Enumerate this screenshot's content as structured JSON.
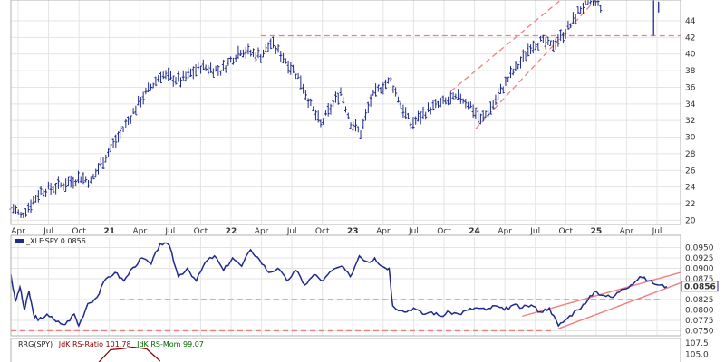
{
  "chart_data": [
    {
      "type": "ohlc",
      "x_ticks": [
        "Apr",
        "Jul",
        "Oct",
        "21",
        "Apr",
        "Jul",
        "Oct",
        "22",
        "Apr",
        "Jul",
        "Oct",
        "23",
        "Apr",
        "Jul",
        "Oct",
        "24",
        "Apr",
        "Jul",
        "Oct",
        "25",
        "Apr",
        "Jul"
      ],
      "ylim": [
        19.5,
        46.5
      ],
      "y_ticks": [
        20,
        22,
        24,
        26,
        28,
        30,
        32,
        34,
        36,
        38,
        40,
        42,
        44
      ],
      "grid": true,
      "price_path": [
        [
          0,
          21.8
        ],
        [
          1,
          20.5
        ],
        [
          3,
          23.5
        ],
        [
          5,
          24.2
        ],
        [
          7,
          25.2
        ],
        [
          8,
          24.6
        ],
        [
          9,
          26.8
        ],
        [
          11,
          30.5
        ],
        [
          13,
          34.5
        ],
        [
          15,
          37.5
        ],
        [
          17,
          36.8
        ],
        [
          19,
          38.5
        ],
        [
          21,
          38.0
        ],
        [
          23,
          40.5
        ],
        [
          25,
          39.8
        ],
        [
          26,
          41.3
        ],
        [
          27,
          40.0
        ],
        [
          28,
          38.5
        ],
        [
          29,
          36.8
        ],
        [
          30,
          33.8
        ],
        [
          31,
          31.5
        ],
        [
          32,
          33.5
        ],
        [
          33,
          35.5
        ],
        [
          34,
          31.8
        ],
        [
          35,
          30.5
        ],
        [
          36,
          34.5
        ],
        [
          37,
          36.0
        ],
        [
          38,
          36.8
        ],
        [
          39,
          34.0
        ],
        [
          40,
          31.5
        ],
        [
          41,
          32.5
        ],
        [
          42,
          33.5
        ],
        [
          44,
          34.5
        ],
        [
          45,
          34.8
        ],
        [
          46,
          33.8
        ],
        [
          47,
          32.0
        ],
        [
          48,
          33.5
        ],
        [
          49,
          35.5
        ],
        [
          50,
          37.5
        ],
        [
          51,
          39.0
        ],
        [
          52,
          41.0
        ],
        [
          53,
          41.5
        ],
        [
          54,
          41.0
        ],
        [
          55,
          42.0
        ],
        [
          56,
          43.5
        ],
        [
          57,
          45.5
        ],
        [
          58,
          46.3
        ],
        [
          59,
          45.8
        ]
      ],
      "gap_after_index": 59,
      "last_bars": [
        {
          "x": 64.3,
          "high": 46.5,
          "low": 42.2
        },
        {
          "x": 64.8,
          "high": 46.3,
          "low": 45.0
        }
      ],
      "x_range": [
        0,
        67
      ],
      "annotations": [
        {
          "kind": "horizontal-dashed",
          "y": 42.2,
          "x_from": 25,
          "x_to": 67
        },
        {
          "kind": "channel-dashed",
          "from": [
            46.5,
            31.0
          ],
          "to": [
            58.5,
            46.5
          ]
        },
        {
          "kind": "channel-dashed",
          "from": [
            44.0,
            35.5
          ],
          "to": [
            55.0,
            46.5
          ]
        }
      ]
    },
    {
      "type": "line",
      "legend": "_XLF:SPY 0.0856",
      "ylim": [
        0.0738,
        0.0975
      ],
      "y_ticks": [
        "0.0950",
        "0.0925",
        "0.0900",
        "0.0875",
        "0.0825",
        "0.0800",
        "0.0775",
        "0.0750"
      ],
      "last_value": "0.0856",
      "grid": true,
      "path": [
        [
          0,
          0.0885
        ],
        [
          0.5,
          0.082
        ],
        [
          1,
          0.0855
        ],
        [
          1.5,
          0.08
        ],
        [
          2,
          0.0845
        ],
        [
          2.5,
          0.079
        ],
        [
          3,
          0.0775
        ],
        [
          4,
          0.079
        ],
        [
          5,
          0.0772
        ],
        [
          6,
          0.0765
        ],
        [
          7,
          0.079
        ],
        [
          7.5,
          0.0762
        ],
        [
          8.5,
          0.0815
        ],
        [
          9.5,
          0.083
        ],
        [
          10.5,
          0.0875
        ],
        [
          11.5,
          0.089
        ],
        [
          12.5,
          0.087
        ],
        [
          13.5,
          0.0902
        ],
        [
          14.5,
          0.0925
        ],
        [
          15.5,
          0.091
        ],
        [
          16.5,
          0.096
        ],
        [
          17.5,
          0.0955
        ],
        [
          18.5,
          0.088
        ],
        [
          19.5,
          0.09
        ],
        [
          20.5,
          0.087
        ],
        [
          21.5,
          0.0915
        ],
        [
          22.5,
          0.093
        ],
        [
          23.5,
          0.0895
        ],
        [
          24.5,
          0.0925
        ],
        [
          25.5,
          0.0905
        ],
        [
          26.5,
          0.0945
        ],
        [
          27.5,
          0.092
        ],
        [
          28.5,
          0.089
        ],
        [
          29.5,
          0.09
        ],
        [
          30.5,
          0.087
        ],
        [
          31.5,
          0.0895
        ],
        [
          32.5,
          0.086
        ],
        [
          33.5,
          0.0885
        ],
        [
          34.5,
          0.087
        ],
        [
          35.5,
          0.0895
        ],
        [
          36.5,
          0.0905
        ],
        [
          37.5,
          0.088
        ],
        [
          38.5,
          0.093
        ],
        [
          39.5,
          0.0915
        ],
        [
          40.2,
          0.0925
        ],
        [
          41,
          0.0905
        ],
        [
          41.8,
          0.09
        ],
        [
          42.2,
          0.081
        ],
        [
          43.5,
          0.0795
        ],
        [
          44.5,
          0.0805
        ],
        [
          45.5,
          0.079
        ],
        [
          46.5,
          0.0795
        ],
        [
          47.5,
          0.0785
        ],
        [
          48.5,
          0.0795
        ],
        [
          49.5,
          0.079
        ],
        [
          50.5,
          0.08
        ],
        [
          51.5,
          0.0805
        ],
        [
          52.5,
          0.08
        ],
        [
          53.5,
          0.081
        ],
        [
          54.5,
          0.08
        ],
        [
          55.5,
          0.0812
        ],
        [
          56.5,
          0.0805
        ],
        [
          57.5,
          0.0812
        ],
        [
          58.5,
          0.0795
        ],
        [
          59.5,
          0.0805
        ],
        [
          60.5,
          0.0762
        ],
        [
          61.5,
          0.078
        ],
        [
          62.5,
          0.08
        ],
        [
          63.5,
          0.0815
        ],
        [
          64.5,
          0.0845
        ],
        [
          65.5,
          0.0835
        ],
        [
          66.5,
          0.083
        ],
        [
          67.5,
          0.085
        ],
        [
          68.5,
          0.086
        ],
        [
          69.5,
          0.088
        ],
        [
          70.5,
          0.087
        ],
        [
          71.5,
          0.086
        ],
        [
          72.5,
          0.0856
        ]
      ],
      "x_range": [
        0,
        74
      ],
      "annotations": [
        {
          "kind": "horizontal-dashed",
          "y": 0.0825,
          "x_from": 12,
          "x_to": 72
        },
        {
          "kind": "horizontal-dashed",
          "y": 0.075,
          "x_from": 0,
          "x_to": 60
        },
        {
          "kind": "channel",
          "from": [
            56.5,
            0.0785
          ],
          "to": [
            74,
            0.089
          ]
        },
        {
          "kind": "channel",
          "from": [
            60.5,
            0.0755
          ],
          "to": [
            74,
            0.0865
          ]
        }
      ]
    },
    {
      "type": "line",
      "legend_prefix": "RRG(SPY)",
      "legend_ratio": "JdK RS-Ratio 101.78",
      "legend_mom": "JdK RS-Mom 99.07",
      "y_ticks": [
        "107.5",
        "105.0"
      ],
      "ylim": [
        102.5,
        108.5
      ],
      "ratio_path": [
        [
          9.5,
          102.8
        ],
        [
          11,
          106.0
        ],
        [
          12.5,
          106.3
        ],
        [
          13.5,
          106.6
        ],
        [
          15,
          106.2
        ],
        [
          16.5,
          103.5
        ]
      ]
    }
  ],
  "colors": {
    "bars": "#1e2a8c",
    "line": "#1e2a8c",
    "annotation": "#f08080",
    "rs_ratio": "#8b0000",
    "rs_mom": "#006400"
  }
}
